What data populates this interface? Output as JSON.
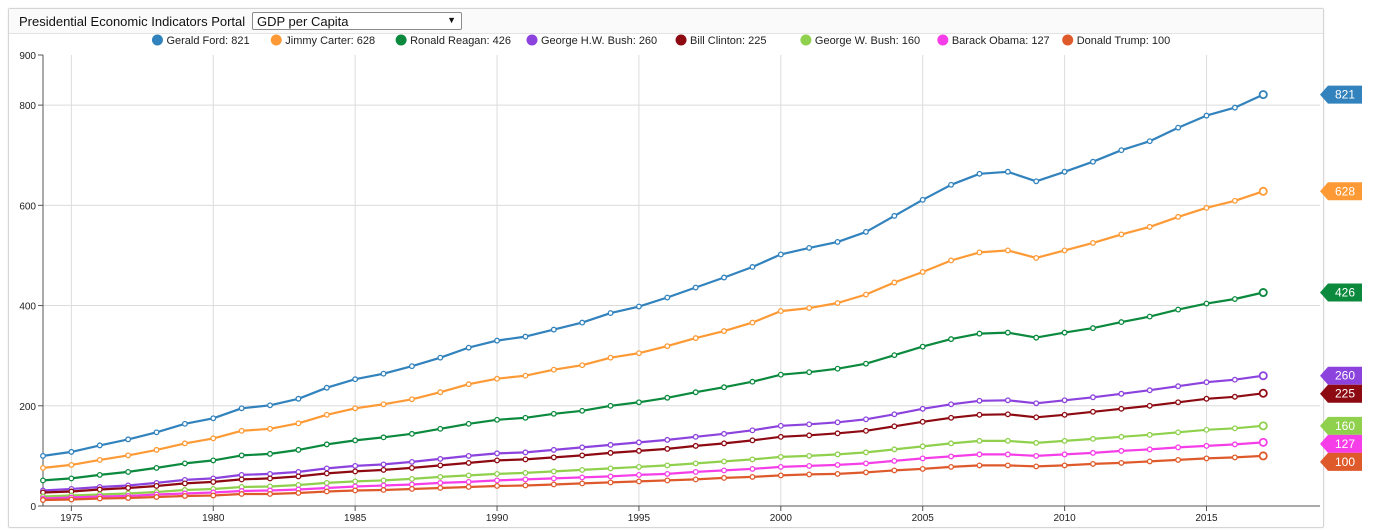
{
  "header": {
    "title": "Presidential Economic Indicators Portal",
    "indicator_select": {
      "selected": "GDP per Capita",
      "arrow_icon": "triangle-down-icon"
    }
  },
  "chart_data": {
    "type": "line",
    "title": "",
    "xlabel": "",
    "ylabel": "",
    "xlim": [
      1974,
      2019
    ],
    "ylim": [
      0,
      900
    ],
    "x_ticks": [
      1975,
      1980,
      1985,
      1990,
      1995,
      2000,
      2005,
      2010,
      2015
    ],
    "x_tick_labels": [
      "1975",
      "1980",
      "1985",
      "1990",
      "1995",
      "2000",
      "2005",
      "2010",
      "2015"
    ],
    "y_ticks": [
      0,
      200,
      400,
      600,
      800,
      900
    ],
    "y_tick_labels": [
      "0",
      "200",
      "400",
      "600",
      "800",
      "900"
    ],
    "grid": true,
    "legend_position": "top",
    "x": [
      1974,
      1975,
      1976,
      1977,
      1978,
      1979,
      1980,
      1981,
      1982,
      1983,
      1984,
      1985,
      1986,
      1987,
      1988,
      1989,
      1990,
      1991,
      1992,
      1993,
      1994,
      1995,
      1996,
      1997,
      1998,
      1999,
      2000,
      2001,
      2002,
      2003,
      2004,
      2005,
      2006,
      2007,
      2008,
      2009,
      2010,
      2011,
      2012,
      2013,
      2014,
      2015,
      2016,
      2017
    ],
    "series": [
      {
        "name": "Gerald Ford",
        "legend_label": "Gerald Ford: 821",
        "end_label": "821",
        "color": "#3182bd",
        "values": [
          100,
          108,
          121,
          133,
          147,
          164,
          175,
          195,
          201,
          214,
          236,
          253,
          264,
          279,
          296,
          316,
          330,
          338,
          352,
          366,
          385,
          398,
          416,
          436,
          456,
          477,
          502,
          515,
          527,
          547,
          579,
          611,
          641,
          663,
          667,
          648,
          667,
          687,
          710,
          728,
          755,
          779,
          795,
          821
        ]
      },
      {
        "name": "Jimmy Carter",
        "legend_label": "Jimmy Carter: 628",
        "end_label": "628",
        "color": "#fd9a35",
        "values": [
          76,
          82,
          92,
          101,
          112,
          125,
          135,
          150,
          154,
          165,
          182,
          195,
          203,
          213,
          227,
          243,
          254,
          260,
          272,
          281,
          296,
          305,
          319,
          335,
          349,
          366,
          389,
          395,
          405,
          422,
          446,
          467,
          490,
          506,
          510,
          495,
          510,
          525,
          542,
          557,
          577,
          595,
          609,
          628
        ]
      },
      {
        "name": "Ronald Reagan",
        "legend_label": "Ronald Reagan: 426",
        "end_label": "426",
        "color": "#0b8a3e",
        "values": [
          51,
          55,
          62,
          68,
          76,
          85,
          91,
          101,
          104,
          112,
          123,
          131,
          137,
          144,
          154,
          164,
          172,
          176,
          184,
          190,
          200,
          207,
          216,
          227,
          237,
          248,
          262,
          267,
          274,
          284,
          301,
          318,
          333,
          344,
          346,
          336,
          346,
          355,
          367,
          378,
          392,
          404,
          413,
          426
        ]
      },
      {
        "name": "George H.W. Bush",
        "legend_label": "George H.W. Bush: 260",
        "end_label": "260",
        "color": "#8c43de",
        "values": [
          31,
          34,
          38,
          41,
          46,
          52,
          55,
          62,
          64,
          68,
          75,
          80,
          83,
          88,
          94,
          100,
          105,
          107,
          112,
          117,
          122,
          127,
          132,
          138,
          144,
          151,
          160,
          163,
          167,
          173,
          183,
          194,
          203,
          210,
          211,
          205,
          211,
          217,
          224,
          231,
          239,
          247,
          252,
          260
        ]
      },
      {
        "name": "Bill Clinton",
        "legend_label": "Bill Clinton: 225",
        "end_label": "225",
        "color": "#8e0a12",
        "values": [
          27,
          29,
          33,
          36,
          40,
          45,
          48,
          53,
          55,
          59,
          65,
          69,
          72,
          76,
          81,
          86,
          91,
          93,
          97,
          101,
          106,
          110,
          114,
          120,
          125,
          131,
          138,
          141,
          145,
          150,
          159,
          168,
          176,
          182,
          183,
          177,
          182,
          188,
          194,
          200,
          207,
          214,
          218,
          225
        ]
      },
      {
        "name": "George W. Bush",
        "legend_label": "George W. Bush: 160",
        "end_label": "160",
        "color": "#8fd04c",
        "values": [
          19,
          21,
          23,
          25,
          28,
          32,
          34,
          38,
          39,
          42,
          46,
          49,
          51,
          54,
          58,
          61,
          64,
          66,
          69,
          72,
          75,
          78,
          81,
          85,
          89,
          93,
          98,
          100,
          103,
          107,
          113,
          119,
          125,
          130,
          130,
          126,
          130,
          134,
          138,
          142,
          147,
          152,
          155,
          160
        ]
      },
      {
        "name": "Barack Obama",
        "legend_label": "Barack Obama: 127",
        "end_label": "127",
        "color": "#f53ee8",
        "values": [
          15,
          17,
          19,
          20,
          23,
          25,
          27,
          30,
          31,
          33,
          36,
          39,
          41,
          43,
          46,
          48,
          51,
          53,
          55,
          57,
          59,
          62,
          64,
          68,
          71,
          74,
          78,
          80,
          82,
          85,
          90,
          95,
          99,
          103,
          103,
          100,
          103,
          106,
          110,
          113,
          117,
          120,
          123,
          127
        ]
      },
      {
        "name": "Donald Trump",
        "legend_label": "Donald Trump: 100",
        "end_label": "100",
        "color": "#df5a2b",
        "values": [
          12,
          13,
          15,
          16,
          18,
          20,
          21,
          24,
          24,
          26,
          29,
          31,
          32,
          34,
          36,
          38,
          40,
          41,
          43,
          45,
          47,
          49,
          51,
          53,
          56,
          58,
          61,
          63,
          64,
          67,
          71,
          74,
          78,
          81,
          81,
          79,
          81,
          84,
          86,
          89,
          92,
          95,
          97,
          100
        ]
      }
    ]
  }
}
